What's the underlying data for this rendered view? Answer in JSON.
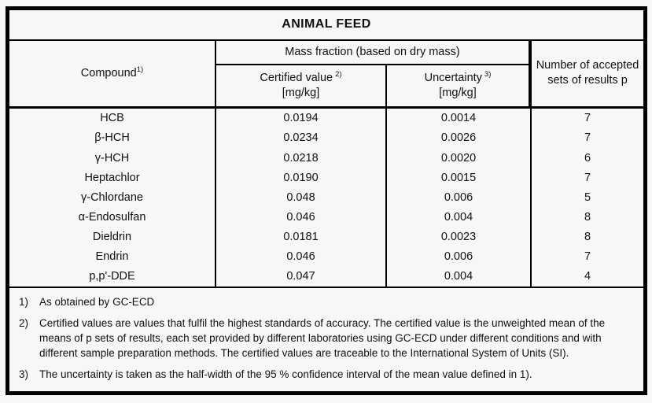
{
  "title": "ANIMAL FEED",
  "header": {
    "compound": {
      "label": "Compound",
      "ref": "1)"
    },
    "mass_fraction_group": "Mass fraction (based on dry mass)",
    "certified": {
      "label": "Certified value",
      "ref": "2)",
      "unit": "[mg/kg]"
    },
    "uncertainty": {
      "label": "Uncertainty",
      "ref": "3)",
      "unit": "[mg/kg]"
    },
    "accepted_sets": "Number of accepted sets of results p"
  },
  "rows": [
    {
      "compound": "HCB",
      "certified_value": "0.0194",
      "uncertainty": "0.0014",
      "accepted_sets": "7"
    },
    {
      "compound": "β-HCH",
      "certified_value": "0.0234",
      "uncertainty": "0.0026",
      "accepted_sets": "7"
    },
    {
      "compound": "γ-HCH",
      "certified_value": "0.0218",
      "uncertainty": "0.0020",
      "accepted_sets": "6"
    },
    {
      "compound": "Heptachlor",
      "certified_value": "0.0190",
      "uncertainty": "0.0015",
      "accepted_sets": "7"
    },
    {
      "compound": "γ-Chlordane",
      "certified_value": "0.048",
      "uncertainty": "0.006",
      "accepted_sets": "5"
    },
    {
      "compound": "α-Endosulfan",
      "certified_value": "0.046",
      "uncertainty": "0.004",
      "accepted_sets": "8"
    },
    {
      "compound": "Dieldrin",
      "certified_value": "0.0181",
      "uncertainty": "0.0023",
      "accepted_sets": "8"
    },
    {
      "compound": "Endrin",
      "certified_value": "0.046",
      "uncertainty": "0.006",
      "accepted_sets": "7"
    },
    {
      "compound": "p,p'-DDE",
      "certified_value": "0.047",
      "uncertainty": "0.004",
      "accepted_sets": "4"
    }
  ],
  "footnotes": [
    {
      "marker": "1)",
      "text": "As obtained by GC-ECD"
    },
    {
      "marker": "2)",
      "text": "Certified values are values that fulfil the highest standards of accuracy. The certified value is the unweighted mean of the means of p sets of results, each set provided by different laboratories using GC-ECD under different conditions and with different sample preparation methods. The certified values are traceable to the International System of Units (SI)."
    },
    {
      "marker": "3)",
      "text": "The uncertainty is taken as the half-width of the 95 % confidence interval of the mean value defined in 1)."
    }
  ]
}
